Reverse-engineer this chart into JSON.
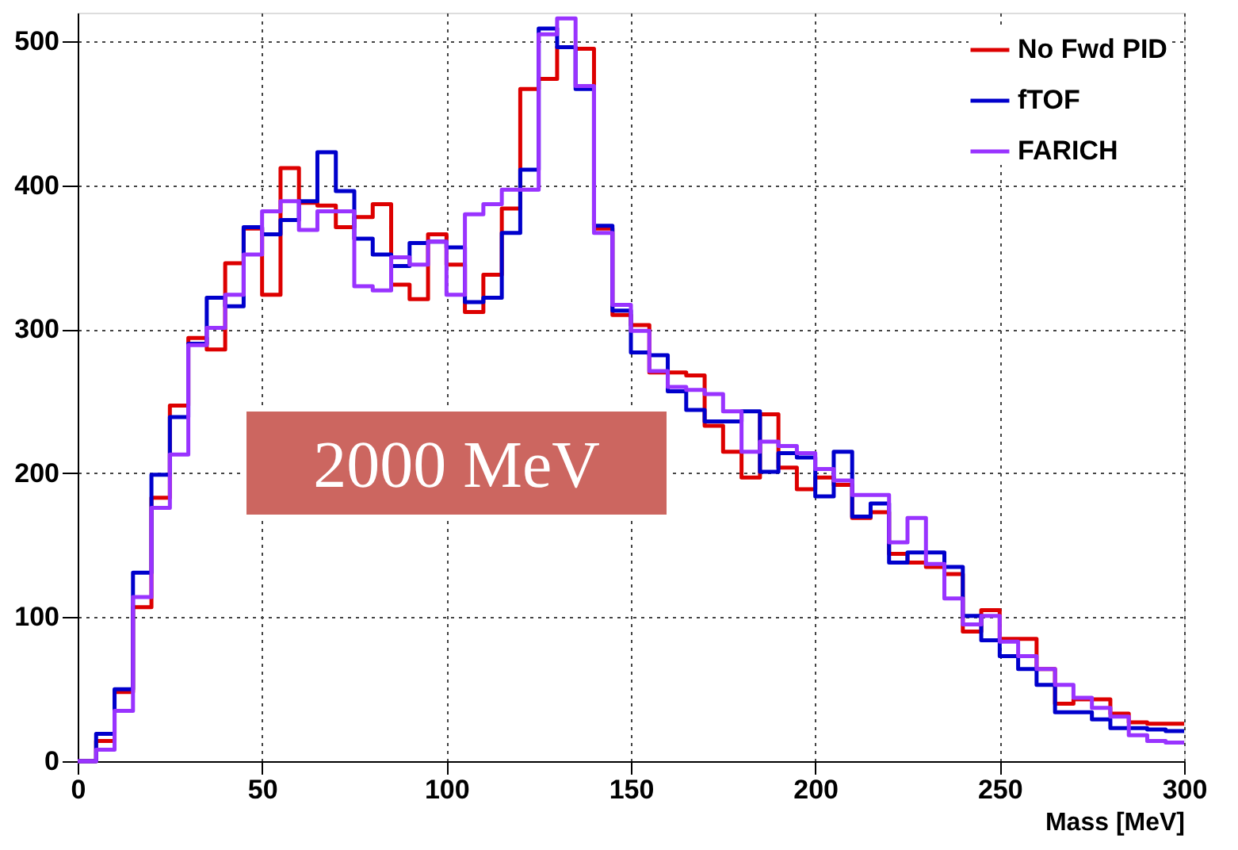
{
  "chart_data": {
    "type": "histogram",
    "xlabel": "Mass [MeV]",
    "bins": [
      0,
      5,
      10,
      15,
      20,
      25,
      30,
      35,
      40,
      45,
      50,
      55,
      60,
      65,
      70,
      75,
      80,
      85,
      90,
      95,
      100,
      105,
      110,
      115,
      120,
      125,
      130,
      135,
      140,
      145,
      150,
      155,
      160,
      165,
      170,
      175,
      180,
      185,
      190,
      195,
      200,
      205,
      210,
      215,
      220,
      225,
      230,
      235,
      240,
      245,
      250,
      255,
      260,
      265,
      270,
      275,
      280,
      285,
      290,
      295,
      300
    ],
    "series": [
      {
        "name": "No Fwd PID",
        "color": "#dd0000",
        "values": [
          0,
          14,
          48,
          107,
          183,
          247,
          294,
          286,
          346,
          370,
          324,
          412,
          388,
          386,
          371,
          378,
          387,
          331,
          321,
          366,
          345,
          312,
          338,
          384,
          467,
          474,
          496,
          495,
          370,
          310,
          303,
          270,
          270,
          268,
          233,
          215,
          197,
          241,
          204,
          189,
          197,
          192,
          169,
          173,
          144,
          138,
          135,
          130,
          90,
          105,
          85,
          85,
          64,
          40,
          43,
          43,
          33,
          27,
          26,
          26
        ]
      },
      {
        "name": "fTOF",
        "color": "#0000cc",
        "values": [
          0,
          19,
          50,
          131,
          199,
          239,
          290,
          322,
          316,
          371,
          366,
          376,
          389,
          423,
          396,
          363,
          352,
          344,
          360,
          361,
          357,
          319,
          322,
          367,
          411,
          509,
          496,
          467,
          372,
          313,
          284,
          282,
          257,
          244,
          236,
          236,
          243,
          201,
          214,
          211,
          184,
          215,
          170,
          179,
          138,
          145,
          145,
          135,
          101,
          84,
          73,
          64,
          53,
          34,
          34,
          29,
          23,
          23,
          22,
          21
        ]
      },
      {
        "name": "FARICH",
        "color": "#9933ff",
        "values": [
          0,
          8,
          35,
          114,
          176,
          213,
          289,
          301,
          324,
          352,
          382,
          389,
          369,
          382,
          382,
          330,
          327,
          350,
          345,
          361,
          324,
          380,
          387,
          397,
          397,
          505,
          516,
          469,
          367,
          317,
          299,
          271,
          260,
          258,
          255,
          243,
          215,
          222,
          219,
          214,
          203,
          195,
          185,
          185,
          152,
          169,
          137,
          113,
          95,
          101,
          83,
          73,
          64,
          53,
          44,
          37,
          31,
          18,
          14,
          13
        ]
      }
    ],
    "xlim": [
      0,
      300
    ],
    "xticks": [
      0,
      50,
      100,
      150,
      200,
      250,
      300
    ],
    "ylim": [
      0,
      520
    ],
    "yticks": [
      0,
      100,
      200,
      300,
      400,
      500
    ],
    "grid": true,
    "legend": "top right",
    "annotations": [
      "2000 MeV"
    ]
  }
}
